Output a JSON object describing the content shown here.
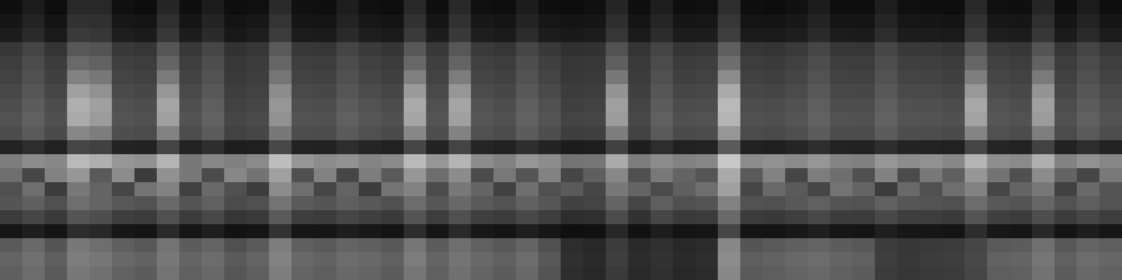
{
  "chart_data": {
    "type": "heatmap",
    "tick_labels": false,
    "cells": [
      [
        15,
        28,
        14,
        40,
        40,
        16,
        13,
        38,
        15,
        28,
        14,
        16,
        42,
        17,
        15,
        30,
        16,
        14,
        40,
        15,
        41,
        16,
        14,
        29,
        15,
        13,
        16,
        38,
        15,
        30,
        14,
        16,
        45,
        15,
        13,
        17,
        28,
        15,
        14,
        30,
        16,
        15,
        14,
        40,
        16,
        15,
        38,
        14,
        28,
        15
      ],
      [
        22,
        35,
        20,
        50,
        48,
        23,
        21,
        47,
        22,
        36,
        20,
        24,
        52,
        22,
        21,
        35,
        23,
        20,
        50,
        22,
        49,
        24,
        21,
        36,
        23,
        20,
        22,
        46,
        21,
        37,
        22,
        23,
        55,
        21,
        20,
        24,
        36,
        22,
        21,
        37,
        23,
        22,
        20,
        50,
        24,
        22,
        47,
        21,
        35,
        22
      ],
      [
        28,
        42,
        26,
        58,
        55,
        30,
        27,
        56,
        29,
        43,
        25,
        30,
        60,
        28,
        27,
        42,
        30,
        26,
        58,
        29,
        57,
        30,
        27,
        44,
        29,
        25,
        28,
        54,
        27,
        44,
        28,
        29,
        62,
        27,
        26,
        30,
        43,
        28,
        27,
        45,
        29,
        28,
        26,
        58,
        30,
        28,
        55,
        27,
        42,
        28
      ],
      [
        55,
        68,
        52,
        88,
        84,
        57,
        54,
        86,
        56,
        70,
        50,
        55,
        90,
        56,
        54,
        69,
        58,
        53,
        88,
        56,
        87,
        58,
        54,
        70,
        57,
        48,
        50,
        82,
        52,
        68,
        53,
        55,
        95,
        54,
        52,
        58,
        70,
        55,
        54,
        71,
        57,
        56,
        53,
        88,
        58,
        55,
        85,
        54,
        68,
        56
      ],
      [
        62,
        76,
        60,
        105,
        98,
        64,
        61,
        100,
        63,
        78,
        56,
        60,
        102,
        63,
        61,
        76,
        65,
        60,
        104,
        63,
        100,
        65,
        61,
        78,
        64,
        54,
        56,
        95,
        58,
        75,
        60,
        62,
        110,
        61,
        59,
        65,
        77,
        62,
        61,
        78,
        64,
        63,
        60,
        102,
        66,
        62,
        98,
        61,
        75,
        63
      ],
      [
        66,
        80,
        64,
        130,
        120,
        68,
        65,
        122,
        67,
        82,
        58,
        62,
        118,
        67,
        65,
        80,
        69,
        64,
        128,
        67,
        124,
        69,
        65,
        82,
        68,
        56,
        58,
        120,
        60,
        80,
        64,
        66,
        140,
        65,
        63,
        69,
        82,
        66,
        65,
        82,
        68,
        67,
        64,
        126,
        70,
        66,
        122,
        65,
        80,
        67
      ],
      [
        72,
        86,
        70,
        160,
        145,
        74,
        71,
        150,
        73,
        88,
        62,
        66,
        140,
        73,
        71,
        86,
        75,
        70,
        155,
        73,
        150,
        75,
        71,
        88,
        74,
        60,
        62,
        148,
        64,
        86,
        70,
        72,
        170,
        71,
        69,
        75,
        88,
        72,
        71,
        88,
        74,
        73,
        70,
        152,
        76,
        72,
        148,
        71,
        86,
        73
      ],
      [
        78,
        92,
        76,
        175,
        160,
        80,
        77,
        165,
        79,
        94,
        66,
        70,
        150,
        79,
        77,
        92,
        82,
        76,
        170,
        80,
        165,
        82,
        77,
        95,
        80,
        64,
        66,
        160,
        68,
        92,
        76,
        78,
        185,
        77,
        75,
        81,
        94,
        78,
        77,
        94,
        80,
        79,
        76,
        168,
        82,
        78,
        160,
        77,
        92,
        79
      ],
      [
        82,
        96,
        80,
        170,
        155,
        84,
        81,
        160,
        83,
        98,
        70,
        74,
        145,
        83,
        81,
        96,
        86,
        80,
        165,
        84,
        160,
        86,
        81,
        98,
        84,
        68,
        70,
        155,
        72,
        96,
        80,
        82,
        180,
        81,
        79,
        85,
        98,
        82,
        81,
        98,
        84,
        83,
        80,
        162,
        86,
        82,
        155,
        81,
        96,
        83
      ],
      [
        76,
        90,
        74,
        135,
        125,
        78,
        75,
        130,
        77,
        92,
        66,
        70,
        120,
        77,
        75,
        90,
        80,
        74,
        135,
        78,
        130,
        80,
        75,
        92,
        78,
        62,
        64,
        125,
        66,
        90,
        74,
        76,
        150,
        75,
        73,
        79,
        92,
        76,
        75,
        92,
        78,
        77,
        74,
        132,
        80,
        76,
        126,
        75,
        90,
        77
      ],
      [
        35,
        45,
        33,
        70,
        65,
        36,
        34,
        68,
        35,
        46,
        30,
        32,
        72,
        35,
        34,
        45,
        37,
        33,
        70,
        35,
        68,
        37,
        34,
        46,
        36,
        28,
        30,
        65,
        31,
        45,
        33,
        35,
        90,
        34,
        32,
        37,
        46,
        35,
        34,
        46,
        36,
        35,
        33,
        70,
        37,
        35,
        66,
        34,
        45,
        35
      ],
      [
        125,
        140,
        135,
        185,
        175,
        150,
        145,
        180,
        120,
        135,
        128,
        138,
        190,
        150,
        140,
        145,
        132,
        138,
        185,
        150,
        180,
        140,
        130,
        150,
        140,
        115,
        118,
        170,
        125,
        140,
        130,
        135,
        200,
        140,
        145,
        138,
        150,
        132,
        128,
        150,
        140,
        145,
        135,
        180,
        142,
        138,
        175,
        130,
        145,
        135
      ],
      [
        110,
        70,
        130,
        150,
        90,
        140,
        60,
        145,
        120,
        75,
        135,
        115,
        160,
        80,
        130,
        70,
        125,
        90,
        150,
        110,
        140,
        75,
        120,
        85,
        130,
        70,
        95,
        135,
        80,
        120,
        100,
        85,
        170,
        90,
        130,
        70,
        125,
        110,
        80,
        130,
        75,
        120,
        95,
        150,
        115,
        80,
        140,
        100,
        70,
        120
      ],
      [
        80,
        110,
        60,
        120,
        100,
        70,
        115,
        130,
        65,
        105,
        80,
        60,
        140,
        110,
        70,
        100,
        60,
        115,
        130,
        75,
        120,
        100,
        65,
        110,
        80,
        90,
        70,
        120,
        100,
        75,
        95,
        110,
        160,
        70,
        105,
        90,
        70,
        115,
        100,
        60,
        105,
        80,
        110,
        130,
        70,
        100,
        120,
        65,
        105,
        85
      ],
      [
        85,
        95,
        80,
        110,
        100,
        88,
        82,
        105,
        84,
        96,
        75,
        80,
        115,
        90,
        85,
        95,
        88,
        80,
        108,
        86,
        104,
        90,
        82,
        96,
        86,
        65,
        68,
        100,
        70,
        94,
        80,
        84,
        130,
        82,
        80,
        88,
        96,
        84,
        82,
        96,
        86,
        84,
        80,
        108,
        88,
        84,
        102,
        82,
        94,
        84
      ],
      [
        60,
        70,
        58,
        85,
        78,
        62,
        59,
        80,
        60,
        72,
        54,
        58,
        90,
        62,
        60,
        70,
        63,
        58,
        84,
        61,
        80,
        63,
        59,
        72,
        62,
        45,
        48,
        76,
        50,
        70,
        58,
        60,
        105,
        59,
        57,
        63,
        72,
        60,
        59,
        72,
        62,
        61,
        58,
        84,
        64,
        60,
        78,
        59,
        70,
        61
      ],
      [
        22,
        30,
        20,
        45,
        40,
        23,
        21,
        42,
        22,
        31,
        19,
        21,
        50,
        23,
        22,
        30,
        24,
        20,
        45,
        22,
        42,
        24,
        21,
        31,
        23,
        16,
        17,
        40,
        18,
        30,
        20,
        22,
        70,
        21,
        20,
        24,
        31,
        22,
        21,
        31,
        23,
        22,
        20,
        45,
        24,
        22,
        40,
        21,
        30,
        22
      ],
      [
        90,
        105,
        85,
        120,
        110,
        95,
        88,
        115,
        92,
        100,
        80,
        90,
        125,
        95,
        90,
        100,
        95,
        88,
        118,
        92,
        110,
        96,
        88,
        100,
        80,
        45,
        40,
        60,
        42,
        48,
        40,
        44,
        135,
        85,
        90,
        95,
        100,
        92,
        88,
        60,
        55,
        58,
        60,
        70,
        90,
        92,
        112,
        88,
        100,
        94
      ],
      [
        100,
        112,
        95,
        125,
        118,
        104,
        98,
        120,
        100,
        108,
        90,
        100,
        130,
        104,
        98,
        108,
        104,
        96,
        124,
        100,
        116,
        104,
        96,
        108,
        88,
        48,
        42,
        62,
        44,
        50,
        42,
        46,
        140,
        94,
        98,
        104,
        108,
        100,
        96,
        62,
        56,
        60,
        62,
        72,
        98,
        100,
        118,
        96,
        108,
        102
      ],
      [
        95,
        108,
        90,
        120,
        112,
        98,
        92,
        115,
        96,
        104,
        86,
        95,
        125,
        100,
        94,
        104,
        100,
        92,
        118,
        96,
        112,
        100,
        92,
        104,
        84,
        46,
        40,
        58,
        42,
        48,
        40,
        44,
        135,
        90,
        94,
        100,
        104,
        96,
        92,
        60,
        54,
        58,
        60,
        70,
        94,
        96,
        114,
        92,
        104,
        98
      ]
    ]
  }
}
